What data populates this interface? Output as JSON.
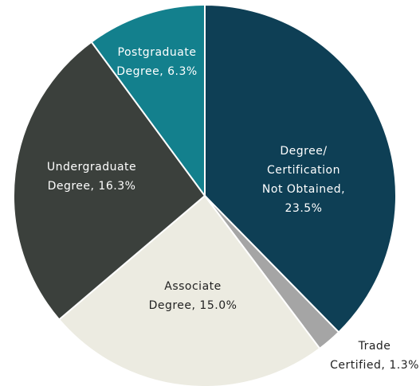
{
  "chart_data": {
    "type": "pie",
    "categories": [
      "Degree/Certification Not Obtained",
      "Trade Certified",
      "Associate Degree",
      "Undergraduate Degree",
      "Postgraduate Degree"
    ],
    "values": [
      23.5,
      1.3,
      15.0,
      16.3,
      6.3
    ],
    "labels": [
      [
        "Degree/",
        "Certification",
        "Not Obtained,",
        "23.5%"
      ],
      [
        "Trade",
        "Certified, 1.3%"
      ],
      [
        "Associate",
        "Degree, 15.0%"
      ],
      [
        "Undergraduate",
        "Degree, 16.3%"
      ],
      [
        "Postgraduate",
        "Degree, 6.3%"
      ]
    ],
    "colors": [
      "#0e3f55",
      "#a5a5a5",
      "#ecebe1",
      "#3b403c",
      "#13808d"
    ],
    "label_colors": [
      "#ffffff",
      "#222222",
      "#222222",
      "#ffffff",
      "#ffffff"
    ]
  }
}
